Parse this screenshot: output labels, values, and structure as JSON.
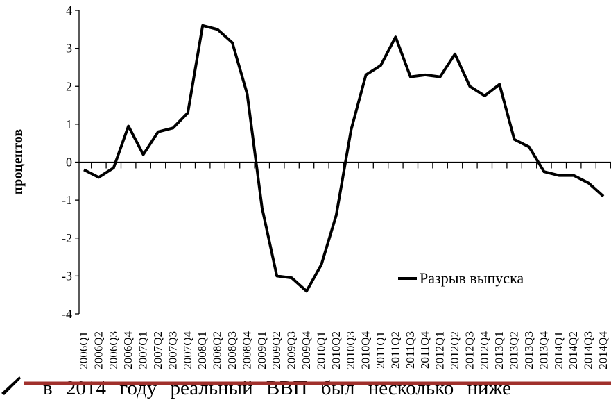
{
  "chart_data": {
    "type": "line",
    "y_label": "процентов",
    "categories": [
      "2006Q1",
      "2006Q2",
      "2006Q3",
      "2006Q4",
      "2007Q1",
      "2007Q2",
      "2007Q3",
      "2007Q4",
      "2008Q1",
      "2008Q2",
      "2008Q3",
      "2008Q4",
      "2009Q1",
      "2009Q2",
      "2009Q3",
      "2009Q4",
      "2010Q1",
      "2010Q2",
      "2010Q3",
      "2010Q4",
      "2011Q1",
      "2011Q2",
      "2011Q3",
      "2011Q4",
      "2012Q1",
      "2012Q2",
      "2012Q3",
      "2012Q4",
      "2013Q1",
      "2013Q2",
      "2013Q3",
      "2013Q4",
      "2014Q1",
      "2014Q2",
      "2014Q3",
      "2014Q4"
    ],
    "series": [
      {
        "name": "Разрыв выпуска",
        "color": "#000000",
        "values": [
          -0.2,
          -0.4,
          -0.15,
          0.95,
          0.2,
          0.8,
          0.9,
          1.3,
          3.6,
          3.5,
          3.15,
          1.8,
          -1.2,
          -3.0,
          -3.05,
          -3.4,
          -2.7,
          -1.4,
          0.85,
          2.3,
          2.55,
          3.3,
          2.25,
          2.3,
          2.25,
          2.85,
          2.0,
          1.75,
          2.05,
          0.6,
          0.4,
          -0.25,
          -0.35,
          -0.35,
          -0.55,
          -0.9
        ]
      }
    ],
    "ylim": [
      -4,
      4
    ],
    "yticks": [
      -4,
      -3,
      -2,
      -1,
      0,
      1,
      2,
      3,
      4
    ],
    "annotation": "в 2014 году реальный ВВП был несколько ниже"
  }
}
